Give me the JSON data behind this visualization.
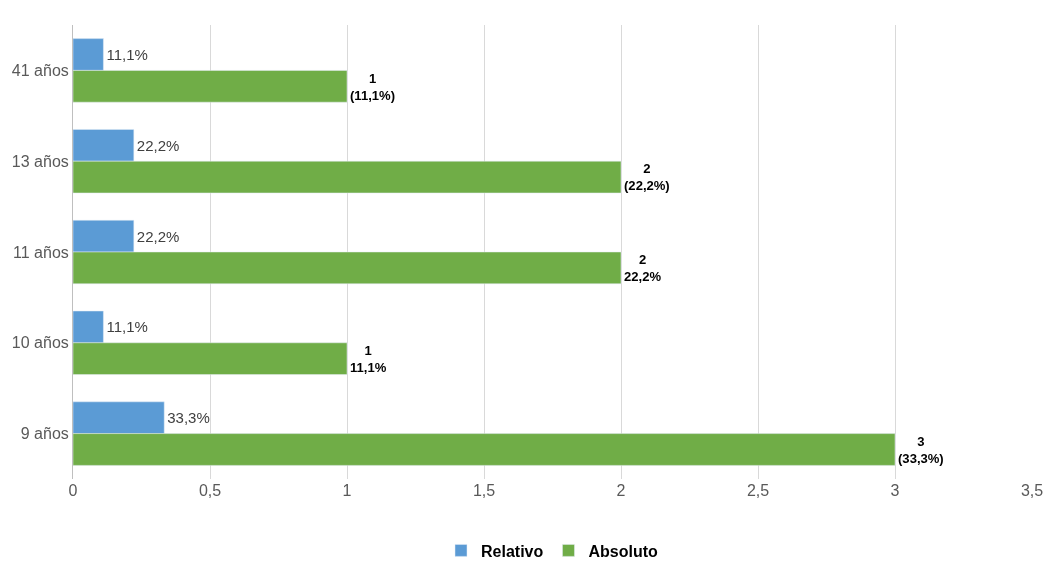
{
  "chart_data": {
    "type": "bar",
    "orientation": "horizontal",
    "categories": [
      "41 años",
      "13 años",
      "11 años",
      "10 años",
      "9 años"
    ],
    "series": [
      {
        "name": "Relativo",
        "color": "#5b9bd5",
        "values": [
          0.111,
          0.222,
          0.222,
          0.111,
          0.333
        ],
        "value_labels": [
          "11,1%",
          "22,2%",
          "22,2%",
          "11,1%",
          "33,3%"
        ]
      },
      {
        "name": "Absoluto",
        "color": "#70ad47",
        "values": [
          1,
          2,
          2,
          1,
          3
        ],
        "value_labels": [
          "1\n(11,1%)",
          "2\n(22,2%)",
          "2\n22,2%",
          "1\n11,1%",
          "3\n(33,3%)"
        ]
      }
    ],
    "xlim": [
      0,
      3.5
    ],
    "xticks": [
      0,
      {
        "value": 0.5,
        "label": "0,5"
      },
      1,
      {
        "value": 1.5,
        "label": "1,5"
      },
      2,
      {
        "value": 2.5,
        "label": "2,5"
      },
      3,
      {
        "value": 3.5,
        "label": "3,5"
      }
    ],
    "grid": "x",
    "legend": "bottom"
  }
}
